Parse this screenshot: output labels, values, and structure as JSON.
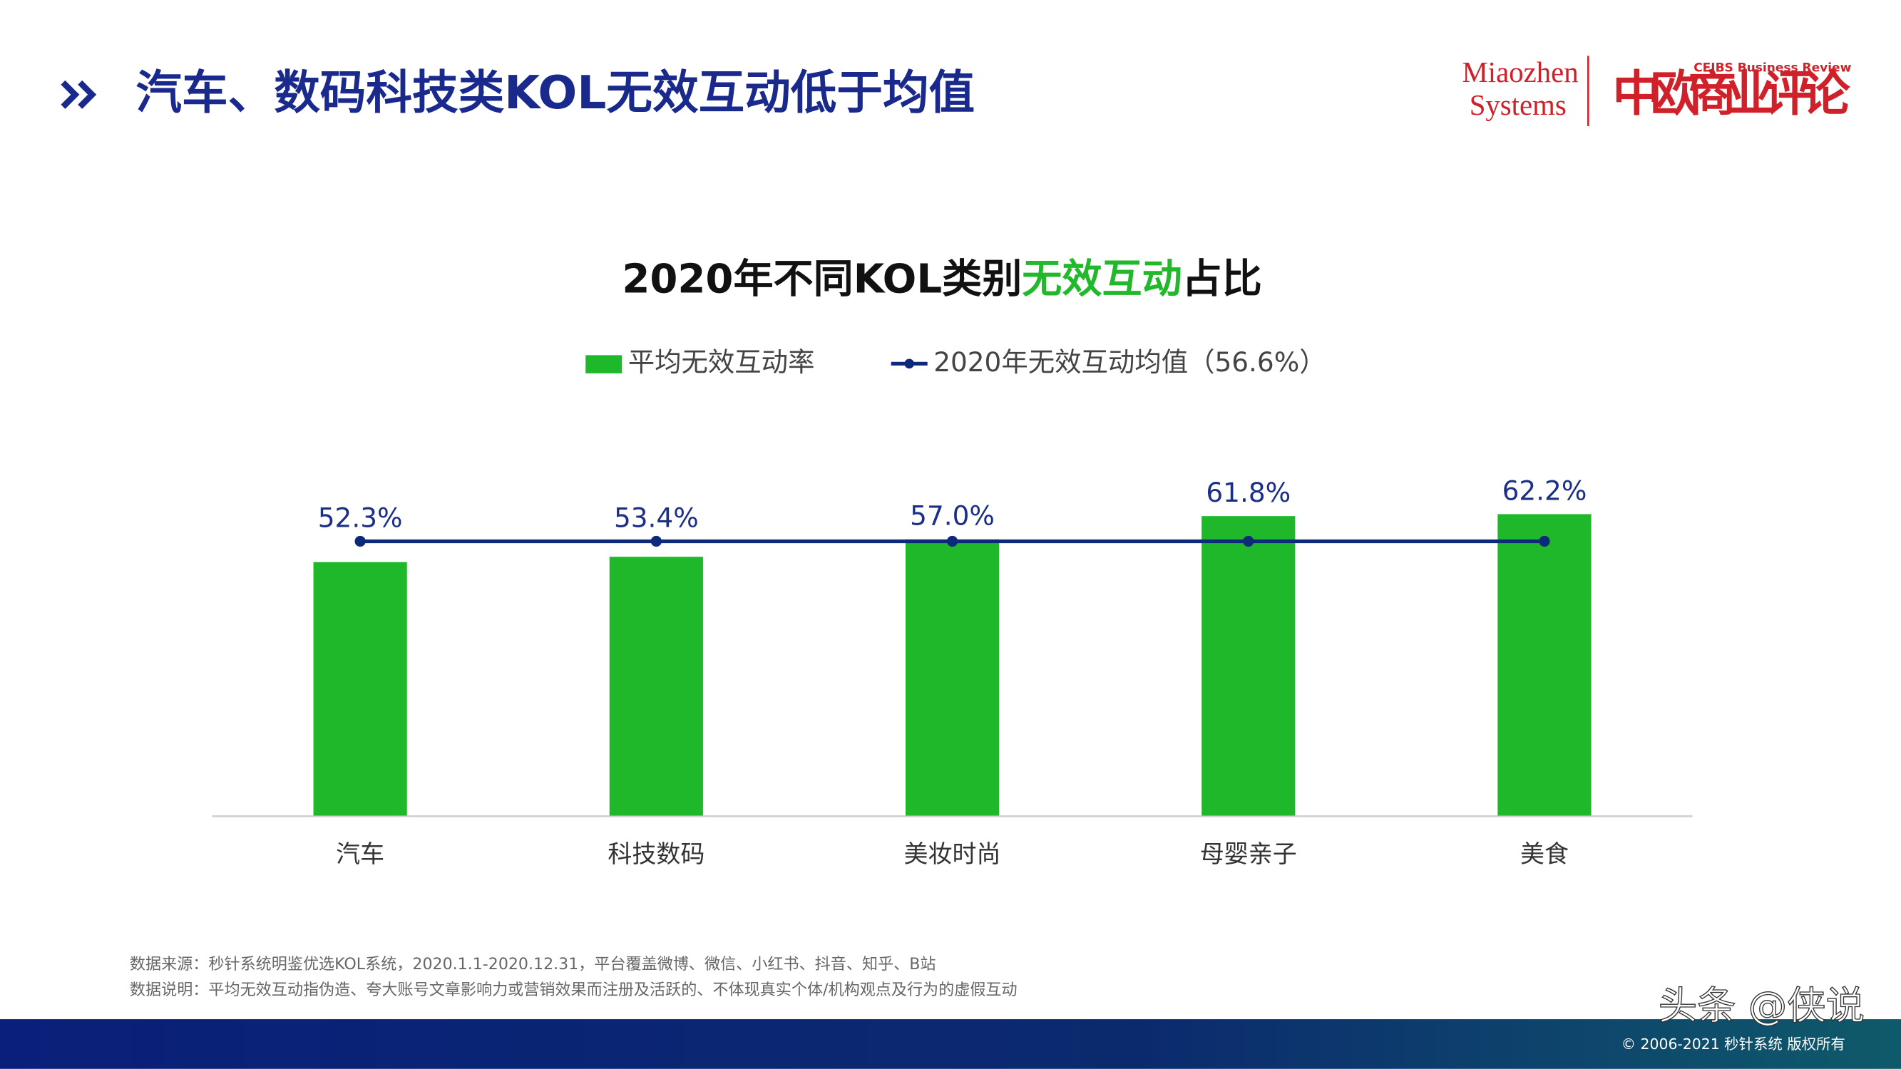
{
  "header": {
    "title": "汽车、数码科技类KOL无效互动低于均值"
  },
  "logos": {
    "left_top": "Miaozhen",
    "left_bottom": "Systems",
    "right_small": "CEIBS Business Review",
    "right_main": "中欧商业评论"
  },
  "chart_data": {
    "type": "bar",
    "title": [
      {
        "text": "2020年不同KOL类别",
        "color": "#111111"
      },
      {
        "text": "无效互动",
        "color": "#22b82c"
      },
      {
        "text": "占比",
        "color": "#111111"
      }
    ],
    "categories": [
      "汽车",
      "科技数码",
      "美妆时尚",
      "母婴亲子",
      "美食"
    ],
    "series": [
      {
        "name": "平均无效互动率",
        "type": "bar",
        "color": "#1fb82a",
        "values": [
          52.3,
          53.4,
          57.0,
          61.8,
          62.2
        ],
        "value_labels": [
          "52.3%",
          "53.4%",
          "57.0%",
          "61.8%",
          "62.2%"
        ]
      },
      {
        "name": "2020年无效互动均值（56.6%）",
        "type": "line",
        "color": "#0d2a7a",
        "values": [
          56.6,
          56.6,
          56.6,
          56.6,
          56.6
        ]
      }
    ],
    "ylim": [
      0,
      70
    ],
    "label_color": "#1b2f86"
  },
  "notes": [
    "数据来源：秒针系统明鉴优选KOL系统，2020.1.1-2020.12.31，平台覆盖微博、微信、小红书、抖音、知乎、B站",
    "数据说明：平均无效互动指伪造、夸大账号文章影响力或营销效果而注册及活跃的、不体现真实个体/机构观点及行为的虚假互动"
  ],
  "footer": {
    "watermark": "头条 @侠说",
    "copyright": "© 2006-2021 秒针系统 版权所有"
  }
}
